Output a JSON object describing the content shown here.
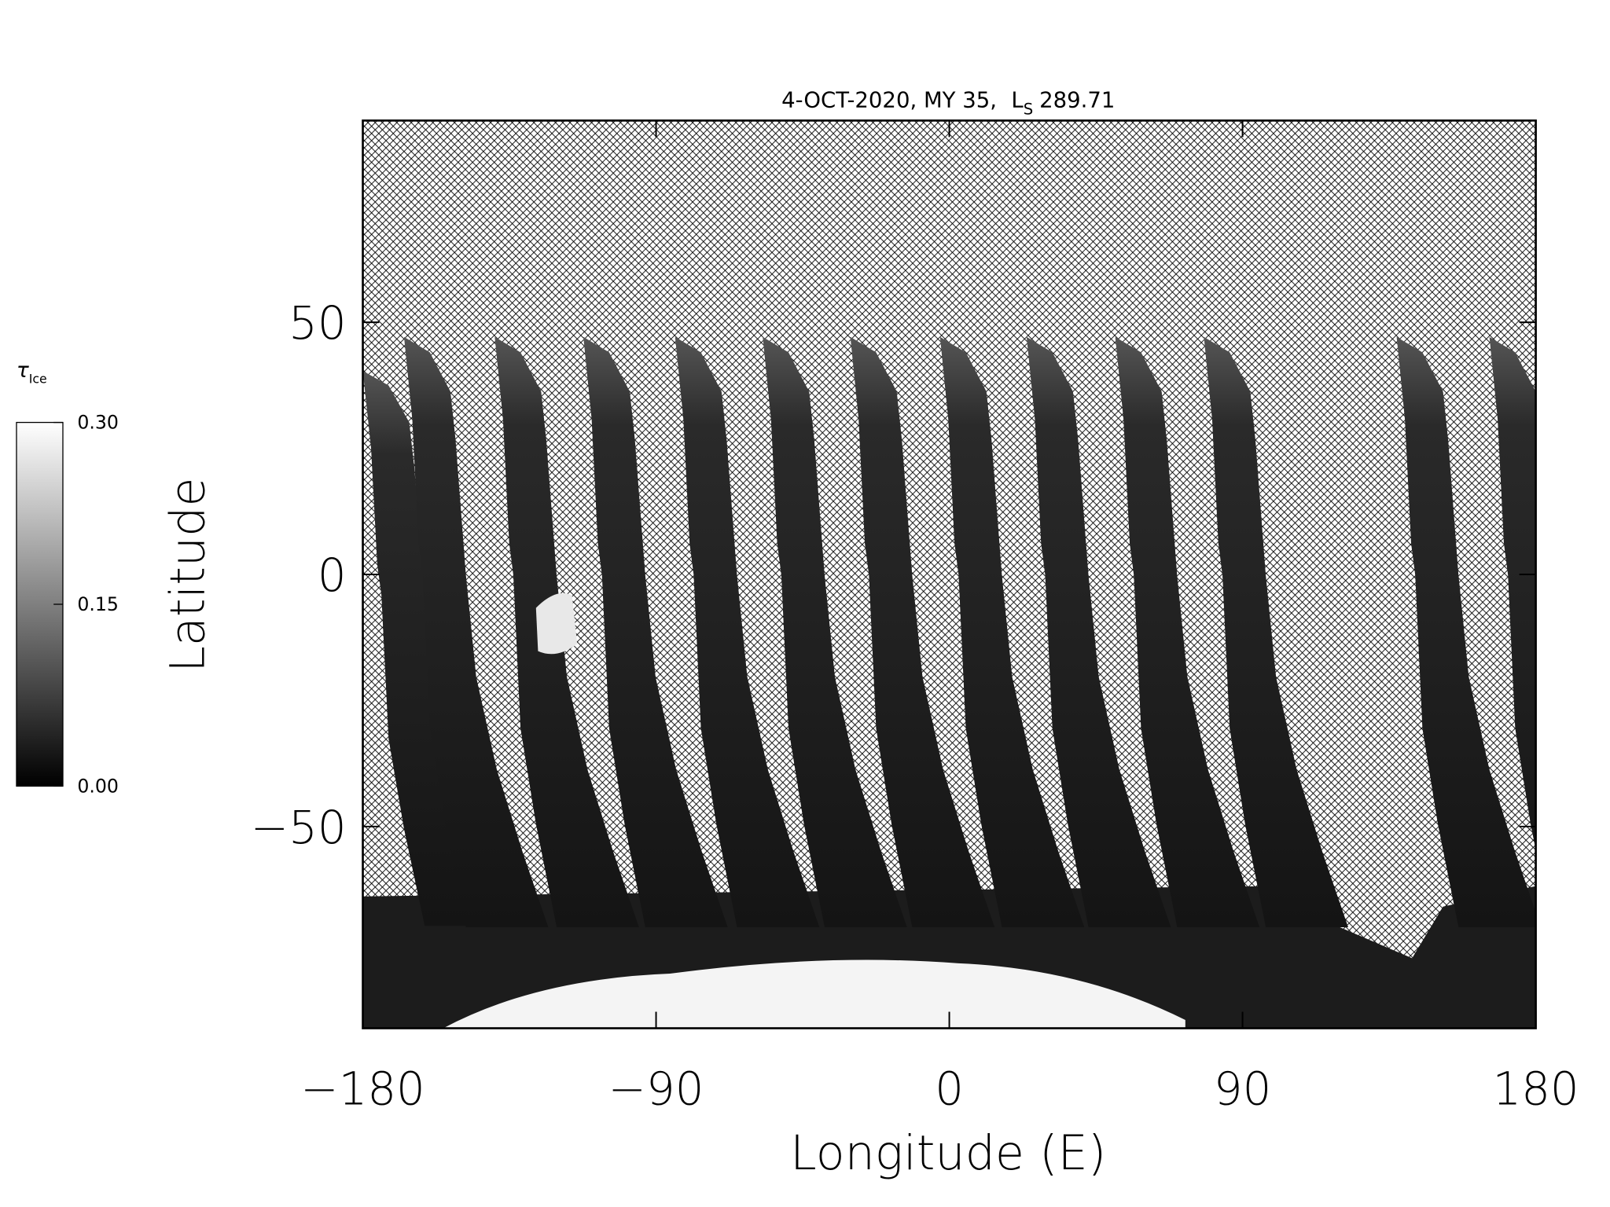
{
  "chart_data": {
    "type": "map",
    "title": {
      "text": "4-OCT-2020, MY 35,",
      "ls_symbol": "L",
      "ls_subscript": "S",
      "ls_value": "289.71"
    },
    "xlabel": "Longitude (E)",
    "ylabel": "Latitude",
    "xlim": [
      -180,
      180
    ],
    "ylim": [
      -90,
      90
    ],
    "xticks": [
      {
        "value": -180,
        "label": "−180"
      },
      {
        "value": -90,
        "label": "−90"
      },
      0,
      90,
      180
    ],
    "yticks": [
      {
        "value": -50,
        "label": "−50"
      },
      0,
      50
    ],
    "colorbar": {
      "label": "τ",
      "label_subscript": "Ice",
      "lim": [
        0,
        0.3
      ],
      "ticks": [
        {
          "value": 0,
          "label": "0.00"
        },
        {
          "value": 0.15,
          "label": "0.15"
        },
        {
          "value": 0.3,
          "label": "0.30"
        }
      ],
      "colors": [
        "#000000",
        "#ffffff"
      ]
    },
    "no_data_pattern": "crosshatch",
    "no_data_color": "#000000"
  }
}
